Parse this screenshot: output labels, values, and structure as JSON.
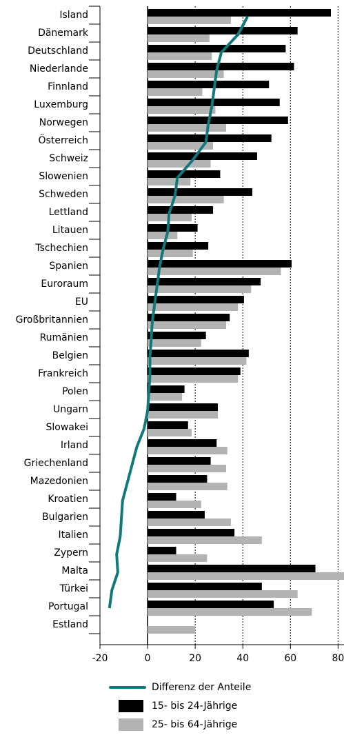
{
  "chart_data": {
    "type": "bar",
    "orientation": "horizontal",
    "categories": [
      "Island",
      "Dänemark",
      "Deutschland",
      "Niederlande",
      "Finnland",
      "Luxemburg",
      "Norwegen",
      "Österreich",
      "Schweiz",
      "Slowenien",
      "Schweden",
      "Lettland",
      "Litauen",
      "Tschechien",
      "Spanien",
      "Euroraum",
      "EU",
      "Großbritannien",
      "Rumänien",
      "Belgien",
      "Frankreich",
      "Polen",
      "Ungarn",
      "Slowakei",
      "Irland",
      "Griechenland",
      "Mazedonien",
      "Kroatien",
      "Bulgarien",
      "Italien",
      "Zypern",
      "Malta",
      "Türkei",
      "Portugal",
      "Estland"
    ],
    "series": [
      {
        "name": "Differenz der Anteile",
        "type": "line",
        "color": "#13787c",
        "values": [
          42,
          38,
          31,
          29,
          28,
          27,
          25.5,
          24.5,
          19,
          12.5,
          11.5,
          9,
          8.5,
          6.5,
          5,
          4,
          3,
          2,
          1.5,
          1,
          1,
          0.5,
          0,
          -1.5,
          -4.5,
          -6.5,
          -8.5,
          -10.5,
          -11,
          -11.5,
          -13,
          -12.5,
          -15,
          -16,
          null
        ]
      },
      {
        "name": "15- bis 24-Jährige",
        "type": "bar",
        "color": "#000000",
        "values": [
          77,
          63,
          58,
          61.5,
          51,
          55.5,
          59,
          52,
          46,
          30.5,
          44,
          27.5,
          21,
          25.5,
          60.5,
          47.5,
          40.5,
          34.5,
          24.5,
          42.5,
          39,
          15.5,
          29.5,
          17,
          29,
          26.5,
          25,
          12,
          24,
          36.5,
          12,
          70.5,
          48,
          53,
          null
        ]
      },
      {
        "name": "25- bis 64-Jährige",
        "type": "bar",
        "color": "#b3b3b3",
        "values": [
          35,
          26,
          27,
          32,
          23,
          28.5,
          33,
          27.5,
          26.5,
          18,
          32,
          18.5,
          12.5,
          19,
          56,
          43.5,
          38,
          33,
          22.5,
          41.5,
          38,
          14.5,
          29.5,
          18.5,
          33.5,
          33,
          33.5,
          22.5,
          35,
          48,
          25,
          83,
          63,
          69,
          20
        ]
      }
    ],
    "xlim": [
      -20,
      82.5
    ],
    "xticks": [
      -20,
      0,
      20,
      40,
      60,
      80
    ],
    "grid": true
  }
}
